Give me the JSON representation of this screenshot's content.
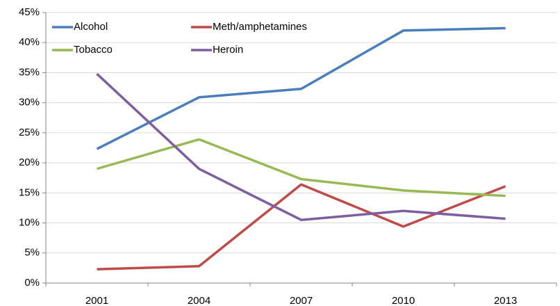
{
  "chart_data": {
    "type": "line",
    "categories": [
      "2001",
      "2004",
      "2007",
      "2010",
      "2013"
    ],
    "series": [
      {
        "name": "Alcohol",
        "color": "#4a7ebb",
        "values": [
          22.3,
          30.9,
          32.3,
          42.0,
          42.4
        ]
      },
      {
        "name": "Meth/amphetamines",
        "color": "#be4b48",
        "values": [
          2.3,
          2.8,
          16.4,
          9.4,
          16.1
        ]
      },
      {
        "name": "Tobacco",
        "color": "#98b954",
        "values": [
          19.0,
          23.9,
          17.3,
          15.4,
          14.5
        ]
      },
      {
        "name": "Heroin",
        "color": "#7d5fa0",
        "values": [
          34.8,
          19.0,
          10.5,
          12.0,
          10.7
        ]
      }
    ],
    "ylim": [
      0,
      45
    ],
    "yticks": [
      {
        "value": 0,
        "label": "0%"
      },
      {
        "value": 5,
        "label": "5%"
      },
      {
        "value": 10,
        "label": "10%"
      },
      {
        "value": 15,
        "label": "15%"
      },
      {
        "value": 20,
        "label": "20%"
      },
      {
        "value": 25,
        "label": "25%"
      },
      {
        "value": 30,
        "label": "30%"
      },
      {
        "value": 35,
        "label": "35%"
      },
      {
        "value": 40,
        "label": "40%"
      },
      {
        "value": 45,
        "label": "45%"
      }
    ],
    "grid": true,
    "legend": "top-left"
  }
}
